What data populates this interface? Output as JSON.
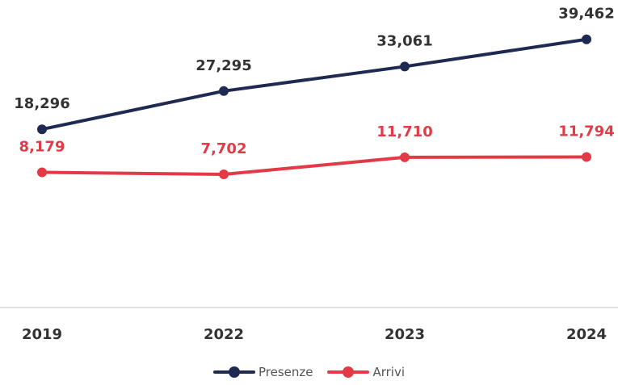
{
  "colors": {
    "presenze": "#1f2a52",
    "arrivi": "#e23a46",
    "axis": "#d9d9d9",
    "tick_text": "#333333"
  },
  "chart_data": {
    "type": "line",
    "categories": [
      "2019",
      "2022",
      "2023",
      "2024"
    ],
    "series": [
      {
        "name": "Presenze",
        "values": [
          18296,
          27295,
          33061,
          39462
        ],
        "labels": [
          "18,296",
          "27,295",
          "33,061",
          "39,462"
        ]
      },
      {
        "name": "Arrivi",
        "values": [
          8179,
          7702,
          11710,
          11794
        ],
        "labels": [
          "8,179",
          "7,702",
          "11,710",
          "11,794"
        ]
      }
    ],
    "title": "",
    "xlabel": "",
    "ylabel": "",
    "legend": "bottom",
    "grid": false
  },
  "legend": {
    "presenze_label": "Presenze",
    "arrivi_label": "Arrivi"
  }
}
